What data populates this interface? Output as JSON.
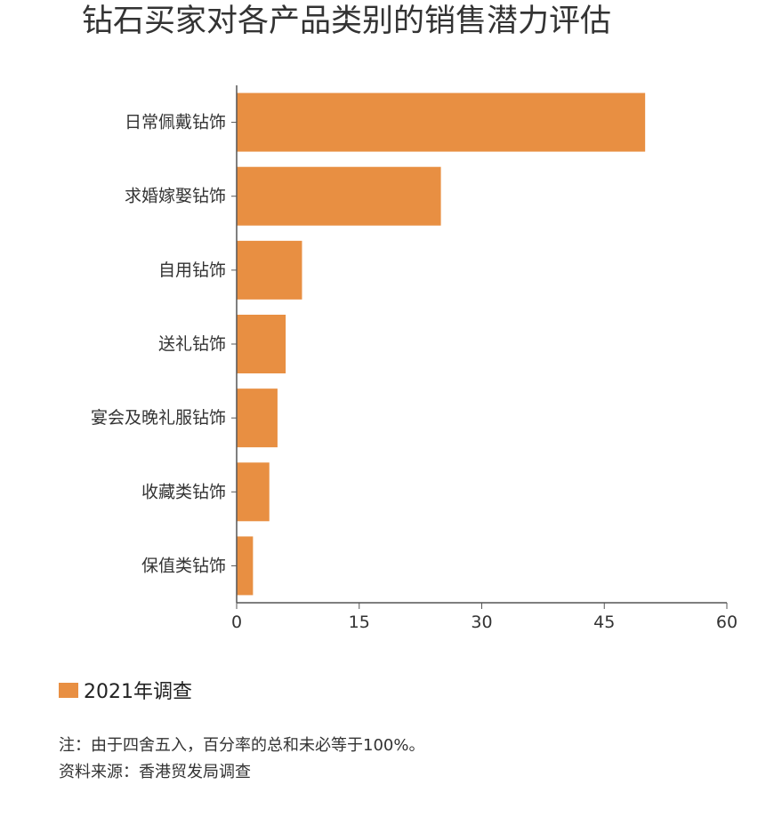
{
  "title": "钻石买家对各产品类别的销售潜力评估",
  "legend": {
    "label": "2021年调查"
  },
  "notes": {
    "note": "注：由于四舍五入，百分率的总和未必等于100%。",
    "source": "资料来源：香港贸发局调查"
  },
  "colors": {
    "bar": "#E88F42",
    "axis": "#555555"
  },
  "chart_data": {
    "type": "bar",
    "orientation": "horizontal",
    "title": "钻石买家对各产品类别的销售潜力评估",
    "categories": [
      "日常佩戴钻饰",
      "求婚嫁娶钻饰",
      "自用钻饰",
      "送礼钻饰",
      "宴会及晚礼服钻饰",
      "收藏类钻饰",
      "保值类钻饰"
    ],
    "series": [
      {
        "name": "2021年调查",
        "values": [
          50,
          25,
          8,
          6,
          5,
          4,
          2
        ]
      }
    ],
    "xlim": [
      0,
      60
    ],
    "xticks": [
      0,
      15,
      30,
      45,
      60
    ],
    "xlabel": "",
    "ylabel": "",
    "grid": false,
    "legend_position": "bottom-left"
  }
}
